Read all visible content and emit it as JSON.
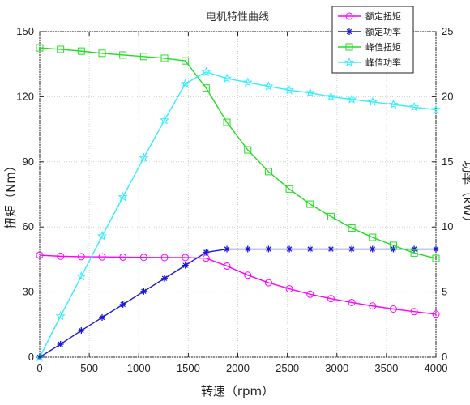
{
  "chart_data": {
    "type": "line",
    "title": "电机特性曲线",
    "xlabel": "转速（rpm）",
    "ylabel_left": "扭矩（Nm）",
    "ylabel_right": "功率（kW）",
    "xlim": [
      0,
      4000
    ],
    "ylim_left": [
      0,
      150
    ],
    "ylim_right": [
      0,
      25
    ],
    "xticks": [
      "0",
      "500",
      "1000",
      "1500",
      "2000",
      "2500",
      "3000",
      "3500",
      "4000"
    ],
    "yticks_left": [
      "0",
      "30",
      "60",
      "90",
      "120",
      "150"
    ],
    "yticks_right": [
      "0",
      "5",
      "10",
      "15",
      "20",
      "25"
    ],
    "grid": true,
    "legend_position": "top-right",
    "series": [
      {
        "name": "额定扭矩",
        "axis": "left",
        "color": "#ff00ff",
        "marker": "circle",
        "x": [
          0,
          210,
          420,
          630,
          840,
          1050,
          1260,
          1470,
          1680,
          1890,
          2100,
          2310,
          2520,
          2730,
          2940,
          3150,
          3360,
          3570,
          3780,
          4000
        ],
        "y": [
          47,
          46.5,
          46.3,
          46.2,
          46.1,
          46.0,
          45.9,
          45.9,
          45.6,
          42.0,
          37.8,
          34.3,
          31.5,
          29.0,
          27.0,
          25.2,
          23.6,
          22.2,
          21.0,
          19.8
        ]
      },
      {
        "name": "额定功率",
        "axis": "right",
        "color": "#1a1ad6",
        "marker": "asterisk",
        "x": [
          0,
          210,
          420,
          630,
          840,
          1050,
          1260,
          1470,
          1680,
          1890,
          2100,
          2310,
          2520,
          2730,
          2940,
          3150,
          3360,
          3570,
          3780,
          4000
        ],
        "y": [
          0,
          1.0,
          2.05,
          3.05,
          4.05,
          5.05,
          6.05,
          7.05,
          8.05,
          8.3,
          8.3,
          8.3,
          8.3,
          8.3,
          8.3,
          8.3,
          8.3,
          8.3,
          8.3,
          8.3
        ]
      },
      {
        "name": "峰值扭矩",
        "axis": "left",
        "color": "#22dd22",
        "marker": "square",
        "x": [
          0,
          210,
          420,
          630,
          840,
          1050,
          1260,
          1470,
          1680,
          1890,
          2100,
          2310,
          2520,
          2730,
          2940,
          3150,
          3360,
          3570,
          3780,
          4000
        ],
        "y": [
          142.5,
          141.8,
          141.0,
          140.0,
          139.2,
          138.5,
          137.7,
          136.5,
          124.0,
          108.2,
          95.5,
          85.5,
          77.5,
          70.5,
          64.8,
          59.5,
          55.2,
          51.5,
          48.0,
          45.5
        ]
      },
      {
        "name": "峰值功率",
        "axis": "right",
        "color": "#33eeff",
        "marker": "star",
        "x": [
          0,
          210,
          420,
          630,
          840,
          1050,
          1260,
          1470,
          1680,
          1890,
          2100,
          2310,
          2520,
          2730,
          2940,
          3150,
          3360,
          3570,
          3780,
          4000
        ],
        "y": [
          0,
          3.15,
          6.2,
          9.3,
          12.3,
          15.3,
          18.2,
          21.0,
          21.9,
          21.4,
          21.1,
          20.8,
          20.5,
          20.3,
          20.0,
          19.8,
          19.6,
          19.4,
          19.2,
          19.0
        ]
      }
    ]
  }
}
